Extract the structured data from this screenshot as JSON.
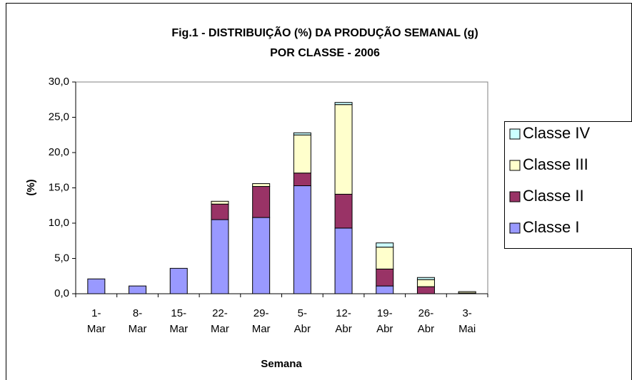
{
  "chart_data": {
    "type": "stacked_bar",
    "title": [
      "Fig.1 - DISTRIBUIÇÃO (%) DA PRODUÇÃO SEMANAL (g)",
      "POR CLASSE - 2006"
    ],
    "xlabel": "Semana",
    "ylabel": "(%)",
    "categories": [
      "1-Mar",
      "8-Mar",
      "15-Mar",
      "22-Mar",
      "29-Mar",
      "5-Abr",
      "12-Abr",
      "19-Abr",
      "26-Abr",
      "3-Mai"
    ],
    "series": [
      {
        "name": "Classe I",
        "color": "#9999ff",
        "values": [
          2.1,
          1.1,
          3.6,
          10.5,
          10.8,
          15.3,
          9.3,
          1.1,
          0,
          0
        ]
      },
      {
        "name": "Classe II",
        "color": "#993366",
        "values": [
          0,
          0,
          0,
          2.2,
          4.4,
          1.8,
          4.8,
          2.4,
          1.0,
          0.1
        ]
      },
      {
        "name": "Classe III",
        "color": "#ffffcc",
        "values": [
          0,
          0,
          0,
          0.4,
          0.4,
          5.4,
          12.7,
          3.1,
          1.0,
          0.2
        ]
      },
      {
        "name": "Classe IV",
        "color": "#ccffff",
        "values": [
          0,
          0,
          0,
          0,
          0,
          0.3,
          0.3,
          0.6,
          0.3,
          0
        ]
      }
    ],
    "ylim": [
      0,
      30
    ],
    "yticks": [
      {
        "value": 0,
        "label": "0,0"
      },
      {
        "value": 5,
        "label": "5,0"
      },
      {
        "value": 10,
        "label": "10,0"
      },
      {
        "value": 15,
        "label": "15,0"
      },
      {
        "value": 20,
        "label": "20,0"
      },
      {
        "value": 25,
        "label": "25,0"
      },
      {
        "value": 30,
        "label": "30,0"
      }
    ],
    "grid": false,
    "legend": "right"
  }
}
